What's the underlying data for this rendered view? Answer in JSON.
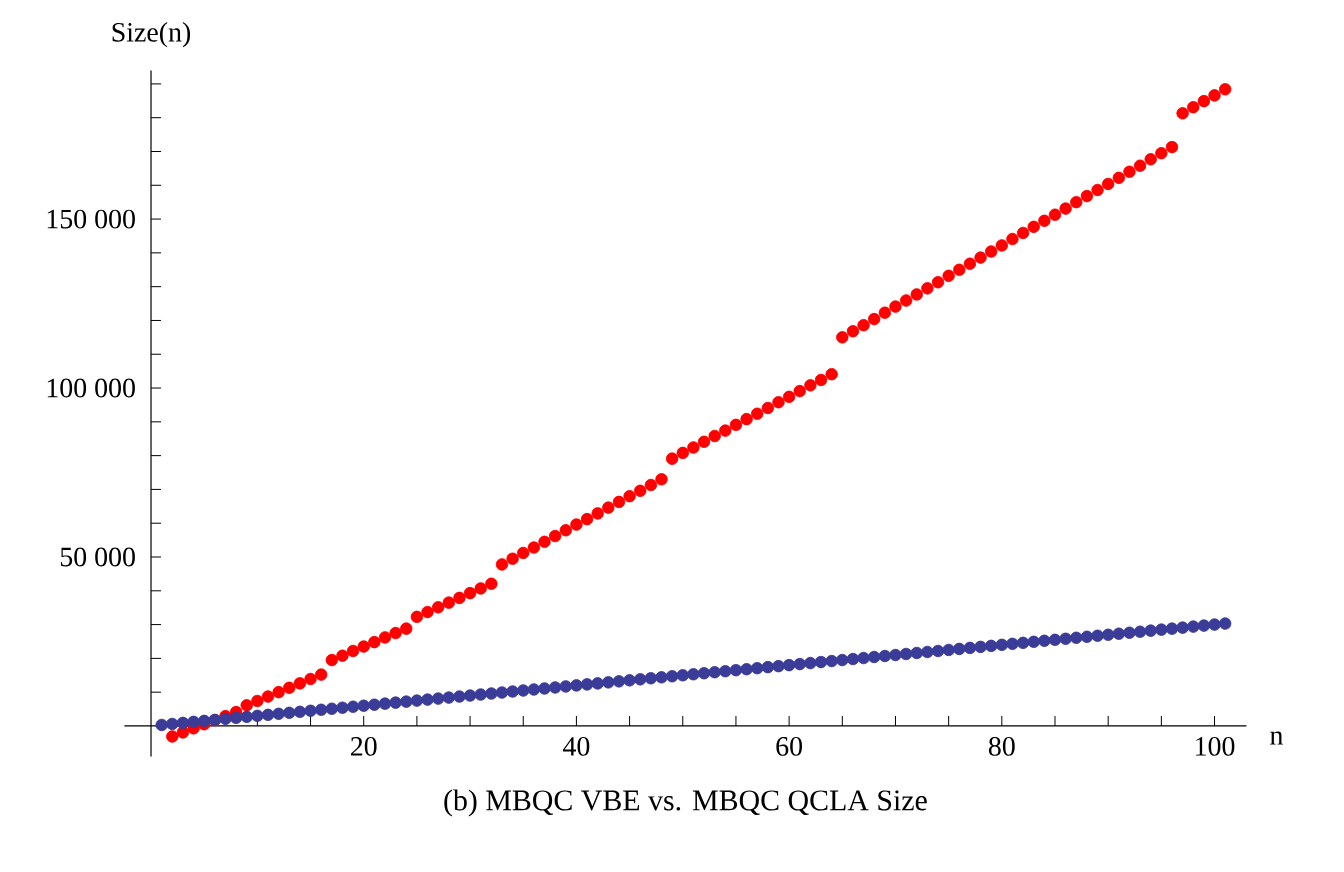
{
  "chart_data": {
    "type": "scatter",
    "title": "(b) MBQC VBE vs. MBQC QCLA Size",
    "xlabel": "n",
    "ylabel": "Size(n)",
    "x": [
      1,
      2,
      3,
      4,
      5,
      6,
      7,
      8,
      9,
      10,
      11,
      12,
      13,
      14,
      15,
      16,
      17,
      18,
      19,
      20,
      21,
      22,
      23,
      24,
      25,
      26,
      27,
      28,
      29,
      30,
      31,
      32,
      33,
      34,
      35,
      36,
      37,
      38,
      39,
      40,
      41,
      42,
      43,
      44,
      45,
      46,
      47,
      48,
      49,
      50,
      51,
      52,
      53,
      54,
      55,
      56,
      57,
      58,
      59,
      60,
      61,
      62,
      63,
      64,
      65,
      66,
      67,
      68,
      69,
      70,
      71,
      72,
      73,
      74,
      75,
      76,
      77,
      78,
      79,
      80,
      81,
      82,
      83,
      84,
      85,
      86,
      87,
      88,
      89,
      90,
      91,
      92,
      93,
      94,
      95,
      96,
      97,
      98,
      99,
      100,
      101
    ],
    "series": [
      {
        "color": "#ff0000",
        "values": [
          null,
          -3100,
          -1900,
          -700,
          500,
          1700,
          2900,
          4100,
          6100,
          7400,
          8700,
          10000,
          11300,
          12600,
          13900,
          15200,
          19500,
          20800,
          22200,
          23500,
          24800,
          26200,
          27500,
          28800,
          32300,
          33700,
          35100,
          36500,
          37900,
          39300,
          40700,
          42100,
          47800,
          49500,
          51200,
          52800,
          54500,
          56200,
          57900,
          59600,
          61200,
          62900,
          64600,
          66300,
          68000,
          69600,
          71300,
          73000,
          79100,
          80800,
          82400,
          84100,
          85800,
          87400,
          89100,
          90800,
          92400,
          94100,
          95800,
          97400,
          99100,
          100800,
          102400,
          104100,
          115000,
          116800,
          118600,
          120400,
          122300,
          124100,
          125900,
          127700,
          129500,
          131300,
          133200,
          135000,
          136800,
          138600,
          140400,
          142200,
          144100,
          145900,
          147700,
          149500,
          151300,
          153100,
          155000,
          156800,
          158600,
          160400,
          162200,
          164000,
          165800,
          167700,
          169500,
          171300,
          181300,
          183100,
          184900,
          186600,
          188400
        ]
      },
      {
        "color": "#3b3b98",
        "values": [
          300,
          600,
          900,
          1200,
          1500,
          1800,
          2100,
          2400,
          2700,
          3000,
          3300,
          3600,
          3900,
          4200,
          4500,
          4800,
          5100,
          5400,
          5700,
          6000,
          6300,
          6600,
          6900,
          7200,
          7500,
          7800,
          8100,
          8400,
          8700,
          9000,
          9300,
          9600,
          9900,
          10200,
          10500,
          10800,
          11100,
          11400,
          11700,
          12000,
          12300,
          12600,
          12900,
          13200,
          13500,
          13800,
          14100,
          14400,
          14700,
          15000,
          15300,
          15600,
          15900,
          16200,
          16500,
          16800,
          17100,
          17400,
          17700,
          18000,
          18300,
          18600,
          18900,
          19200,
          19500,
          19800,
          20100,
          20400,
          20700,
          21000,
          21300,
          21600,
          21900,
          22200,
          22500,
          22800,
          23100,
          23400,
          23700,
          24000,
          24300,
          24600,
          24900,
          25200,
          25500,
          25800,
          26100,
          26400,
          26700,
          27000,
          27300,
          27600,
          27900,
          28200,
          28500,
          28800,
          29100,
          29400,
          29700,
          30000,
          30300
        ]
      }
    ],
    "marker": "circle",
    "xlim": [
      -2.5,
      103
    ],
    "ylim": [
      -9000,
      194000
    ],
    "xticks": [
      {
        "value": 5,
        "label": null
      },
      {
        "value": 10,
        "label": null
      },
      {
        "value": 15,
        "label": null
      },
      20,
      {
        "value": 25,
        "label": null
      },
      {
        "value": 30,
        "label": null
      },
      {
        "value": 35,
        "label": null
      },
      40,
      {
        "value": 45,
        "label": null
      },
      {
        "value": 50,
        "label": null
      },
      {
        "value": 55,
        "label": null
      },
      60,
      {
        "value": 65,
        "label": null
      },
      {
        "value": 70,
        "label": null
      },
      {
        "value": 75,
        "label": null
      },
      80,
      {
        "value": 85,
        "label": null
      },
      {
        "value": 90,
        "label": null
      },
      {
        "value": 95,
        "label": null
      },
      100
    ],
    "yticks": [
      {
        "value": 10000,
        "label": null
      },
      {
        "value": 20000,
        "label": null
      },
      {
        "value": 30000,
        "label": null
      },
      {
        "value": 40000,
        "label": null
      },
      {
        "value": 50000,
        "label": "50 000"
      },
      {
        "value": 60000,
        "label": null
      },
      {
        "value": 70000,
        "label": null
      },
      {
        "value": 80000,
        "label": null
      },
      {
        "value": 90000,
        "label": null
      },
      {
        "value": 100000,
        "label": "100 000"
      },
      {
        "value": 110000,
        "label": null
      },
      {
        "value": 120000,
        "label": null
      },
      {
        "value": 130000,
        "label": null
      },
      {
        "value": 140000,
        "label": null
      },
      {
        "value": 150000,
        "label": "150 000"
      },
      {
        "value": 160000,
        "label": null
      },
      {
        "value": 170000,
        "label": null
      },
      {
        "value": 180000,
        "label": null
      },
      {
        "value": 190000,
        "label": null
      }
    ]
  }
}
